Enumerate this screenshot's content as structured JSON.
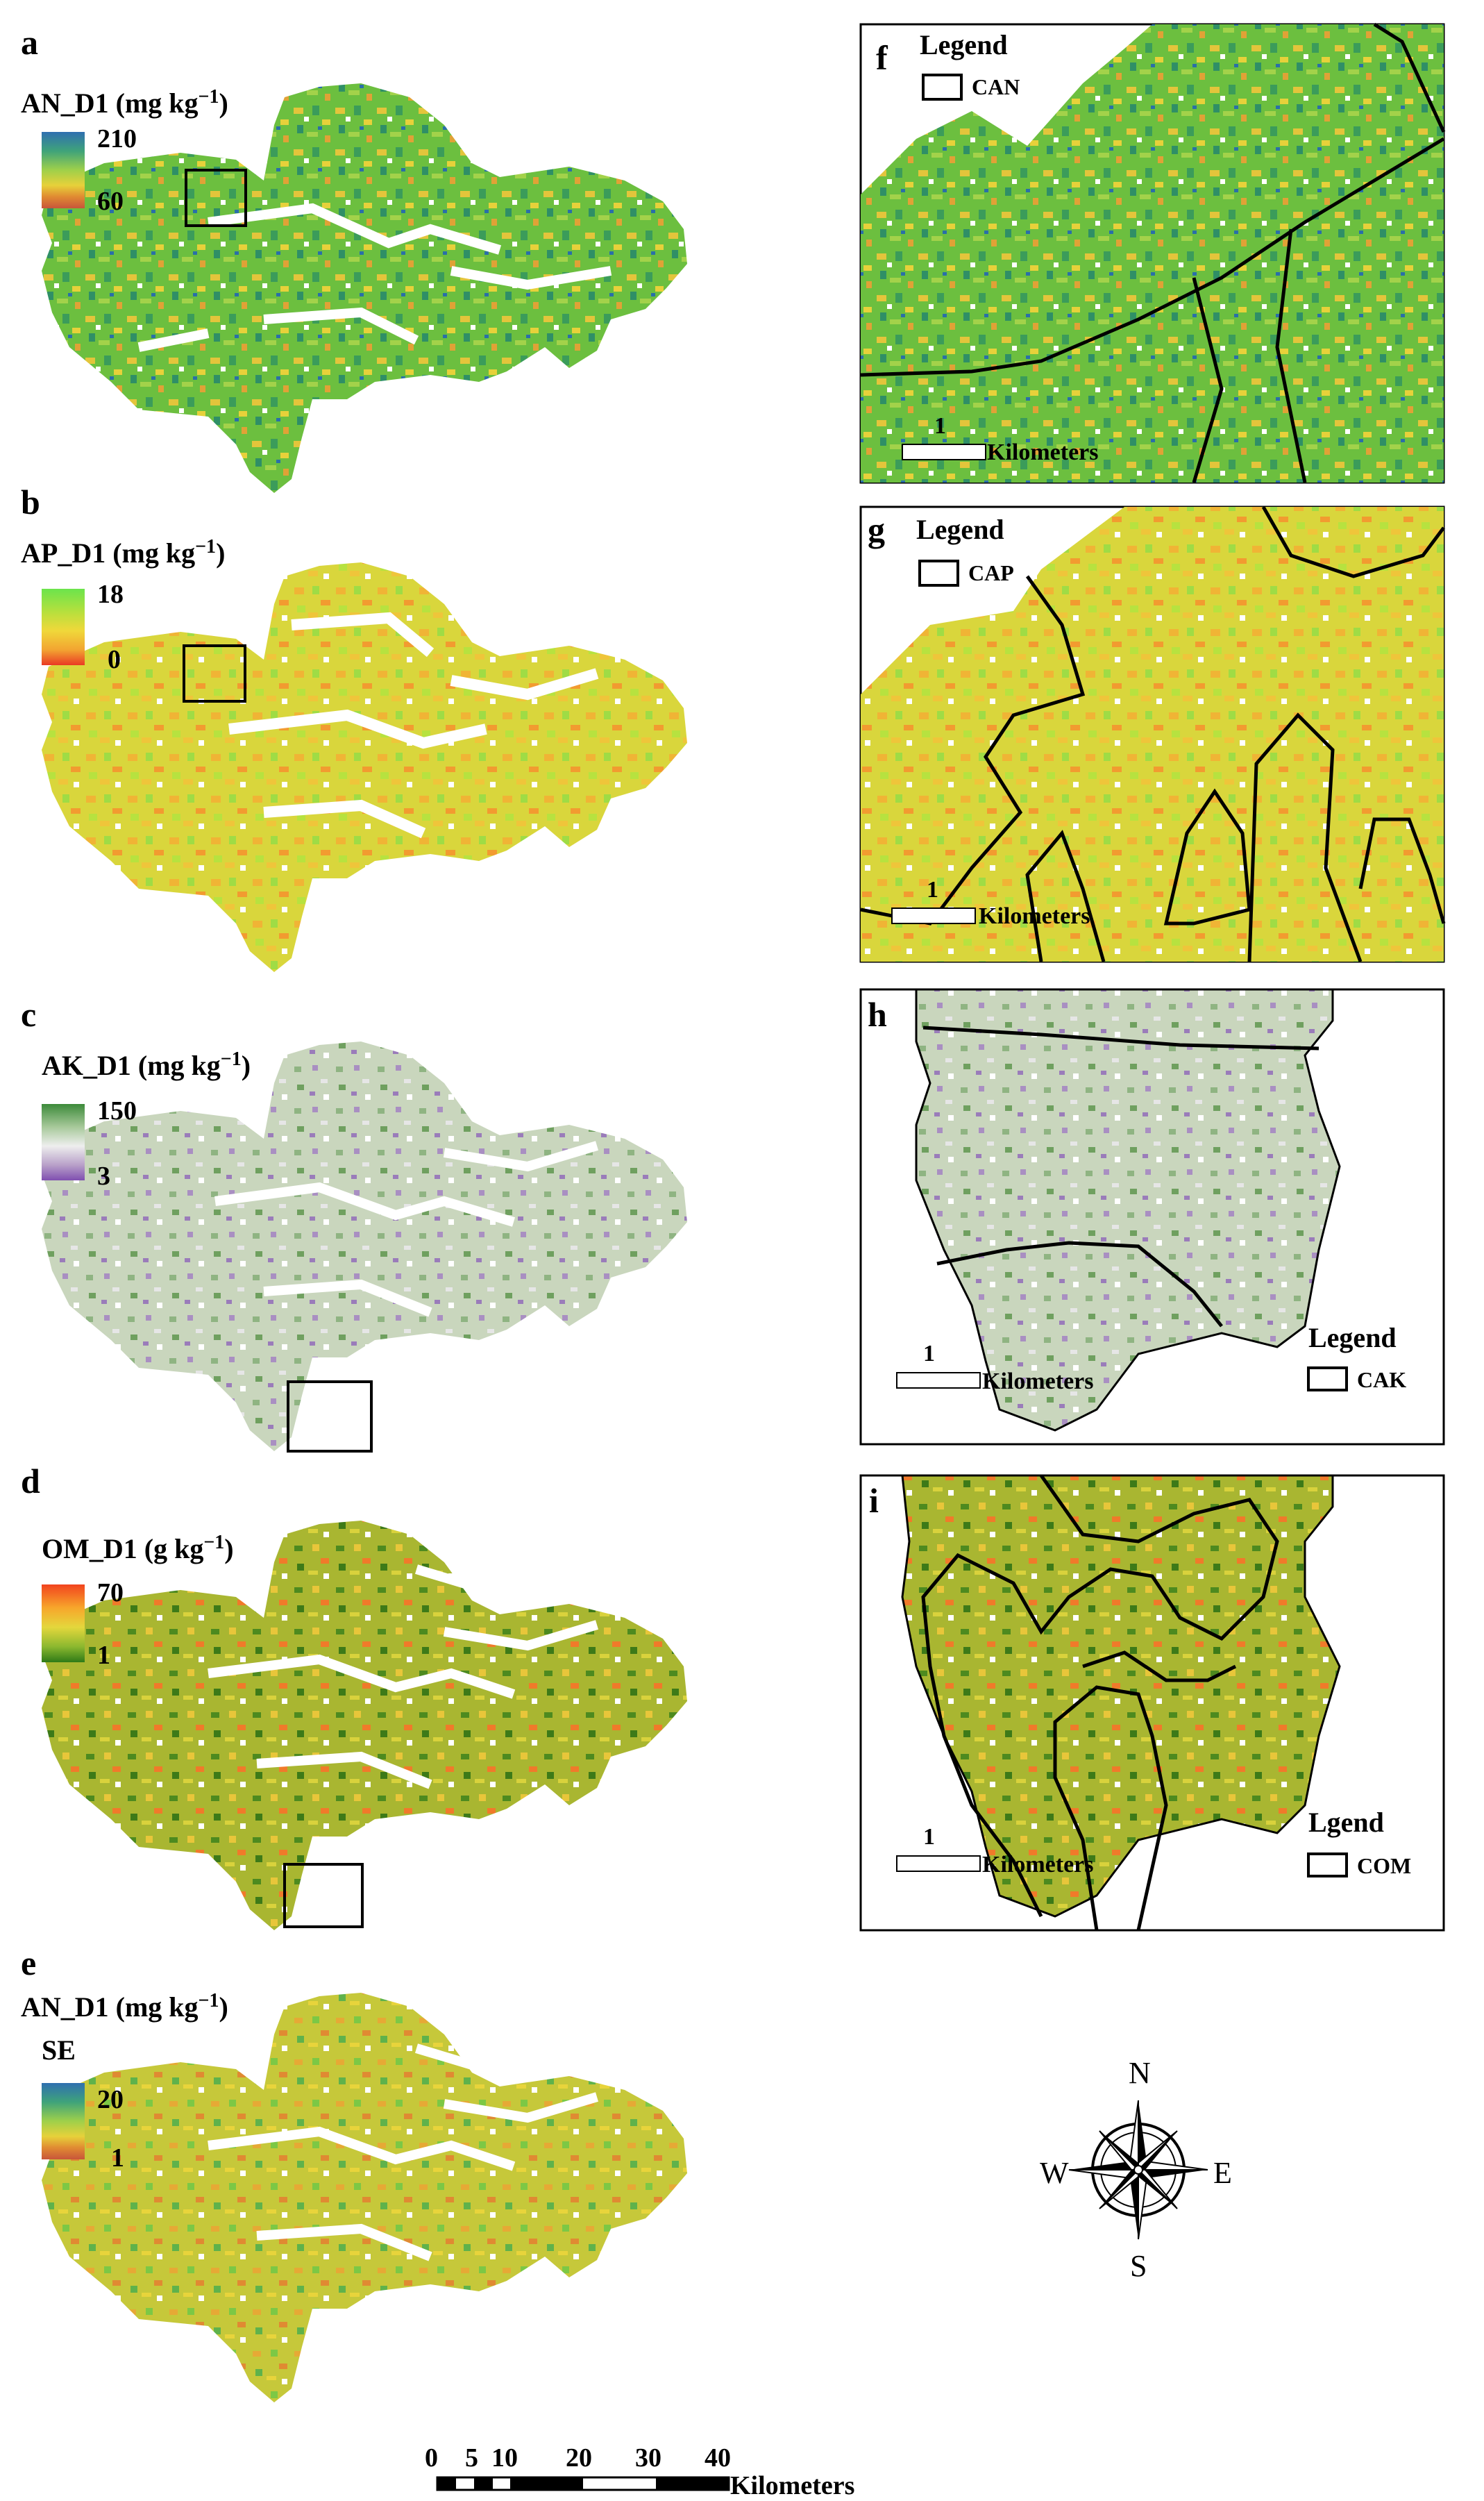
{
  "panels": [
    {
      "letter": "a",
      "title": "AN_D1 (mg kg",
      "title_sup": "−1",
      "title_tail": ")",
      "max": "210",
      "min": "60",
      "colors": [
        "#2f6fb0",
        "#3fa37a",
        "#9fd04a",
        "#e7d13a",
        "#e08a32",
        "#c8553a"
      ]
    },
    {
      "letter": "b",
      "title": "AP_D1 (mg kg",
      "title_sup": "−1",
      "title_tail": ")",
      "max": "18",
      "min": "0",
      "colors": [
        "#6be44c",
        "#b6e03d",
        "#f0d83a",
        "#f2a431",
        "#ea3a24"
      ]
    },
    {
      "letter": "c",
      "title": "AK_D1 (mg kg",
      "title_sup": "−1",
      "title_tail": ")",
      "max": "150",
      "min": "3",
      "colors": [
        "#3c8a3a",
        "#a7c99a",
        "#eeeeee",
        "#b8a0c9",
        "#7f4fb0"
      ]
    },
    {
      "letter": "d",
      "title": "OM_D1 (g kg",
      "title_sup": "−1",
      "title_tail": ")",
      "max": "70",
      "min": "1",
      "colors": [
        "#f2441e",
        "#f7a62b",
        "#e4d73c",
        "#8bb82f",
        "#2f7a17"
      ]
    },
    {
      "letter": "e",
      "title": "AN_D1 (mg kg",
      "title_sup": "−1",
      "title_tail": ")",
      "subtitle": "SE",
      "max": "20",
      "min": "1",
      "colors": [
        "#2f6fb0",
        "#3fa37a",
        "#9fd04a",
        "#e7d13a",
        "#e08a32",
        "#c8553a"
      ]
    }
  ],
  "insets": [
    {
      "letter": "f",
      "legend_title": "Legend",
      "legend_item": "CAN",
      "scale_value": "1",
      "scale_unit": "Kilometers"
    },
    {
      "letter": "g",
      "legend_title": "Legend",
      "legend_item": "CAP",
      "scale_value": "1",
      "scale_unit": "Kilometers"
    },
    {
      "letter": "h",
      "legend_title": "Legend",
      "legend_item": "CAK",
      "scale_value": "1",
      "scale_unit": "Kilometers"
    },
    {
      "letter": "i",
      "legend_title": "Lgend",
      "legend_item": "COM",
      "scale_value": "1",
      "scale_unit": "Kilometers"
    }
  ],
  "compass": {
    "n": "N",
    "s": "S",
    "e": "E",
    "w": "W"
  },
  "scalebar": {
    "ticks": [
      "0",
      "5",
      "10",
      "20",
      "30",
      "40"
    ],
    "unit": "Kilometers"
  }
}
